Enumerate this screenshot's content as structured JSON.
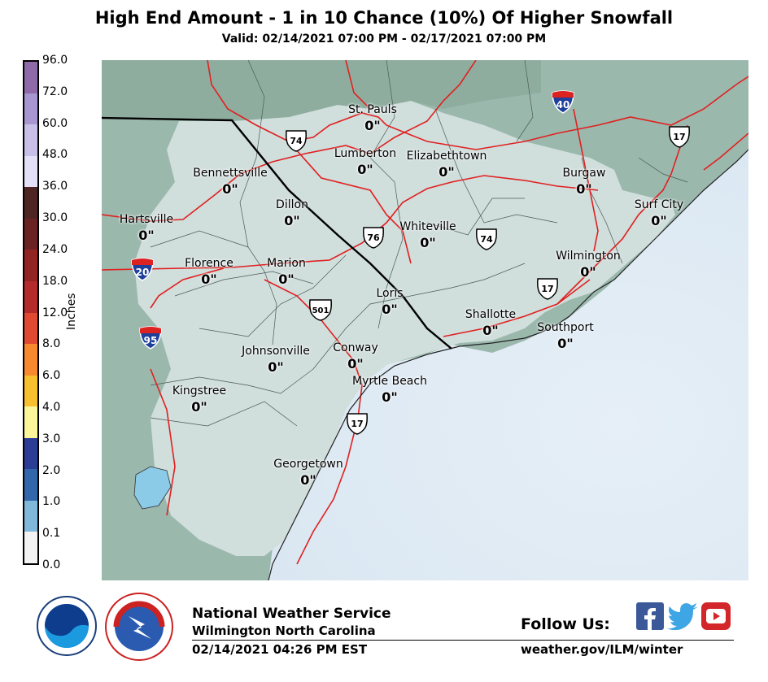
{
  "title": "High End Amount - 1 in 10 Chance (10%) Of Higher Snowfall",
  "valid": "Valid: 02/14/2021 07:00 PM - 02/17/2021 07:00 PM",
  "legend": {
    "unit": "Inches",
    "ticks": [
      "96.0",
      "72.0",
      "60.0",
      "48.0",
      "36.0",
      "30.0",
      "24.0",
      "18.0",
      "12.0",
      "8.0",
      "6.0",
      "4.0",
      "3.0",
      "2.0",
      "1.0",
      "0.1",
      "0.0"
    ],
    "colors": [
      "#8f6aa8",
      "#a896d0",
      "#c8c0e8",
      "#e4e0f8",
      "#4e2523",
      "#6b2222",
      "#922424",
      "#b52b2b",
      "#e04a30",
      "#f78a2e",
      "#f8bf2e",
      "#fbf69a",
      "#2c3d96",
      "#3367ac",
      "#4e8fc4",
      "#80b8da",
      "#c4dcea",
      "#f3f3f3"
    ]
  },
  "cities": [
    {
      "name": "St. Pauls",
      "amount": "0\""
    },
    {
      "name": "Lumberton",
      "amount": "0\""
    },
    {
      "name": "Elizabethtown",
      "amount": "0\""
    },
    {
      "name": "Bennettsville",
      "amount": "0\""
    },
    {
      "name": "Dillon",
      "amount": "0\""
    },
    {
      "name": "Burgaw",
      "amount": "0\""
    },
    {
      "name": "Hartsville",
      "amount": "0\""
    },
    {
      "name": "Surf City",
      "amount": "0\""
    },
    {
      "name": "Whiteville",
      "amount": "0\""
    },
    {
      "name": "Florence",
      "amount": "0\""
    },
    {
      "name": "Marion",
      "amount": "0\""
    },
    {
      "name": "Wilmington",
      "amount": "0\""
    },
    {
      "name": "Loris",
      "amount": "0\""
    },
    {
      "name": "Shallotte",
      "amount": "0\""
    },
    {
      "name": "Southport",
      "amount": "0\""
    },
    {
      "name": "Johnsonville",
      "amount": "0\""
    },
    {
      "name": "Conway",
      "amount": "0\""
    },
    {
      "name": "Myrtle Beach",
      "amount": "0\""
    },
    {
      "name": "Kingstree",
      "amount": "0\""
    },
    {
      "name": "Georgetown",
      "amount": "0\""
    }
  ],
  "shields": {
    "i40": "40",
    "i20": "20",
    "i95": "95",
    "us74a": "74",
    "us74b": "74",
    "us76": "76",
    "us17a": "17",
    "us17b": "17",
    "us17c": "17",
    "us501": "501"
  },
  "colors": {
    "land": "#d0dedc",
    "outside_land": "#9bb8ad",
    "ocean": "#dde9f3",
    "roads": "#e02020",
    "lake": "#8ccbe8"
  },
  "footer": {
    "agency": "National Weather Service",
    "office": "Wilmington North Carolina",
    "issued": "02/14/2021 04:26 PM EST",
    "follow": "Follow Us:",
    "url": "weather.gov/ILM/winter"
  }
}
